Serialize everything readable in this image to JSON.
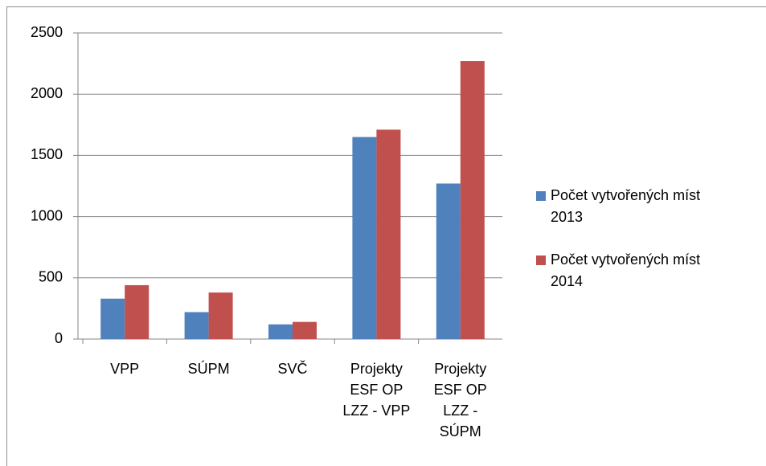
{
  "chart_data": {
    "type": "bar",
    "categories": [
      "VPP",
      "SÚPM",
      "SVČ",
      "Projekty ESF OP LZZ - VPP",
      "Projekty ESF OP LZZ - SÚPM"
    ],
    "series": [
      {
        "name": "Počet vytvořených míst 2013",
        "color": "#4f81bd",
        "values": [
          330,
          220,
          120,
          1650,
          1270
        ]
      },
      {
        "name": "Počet vytvořených míst 2014",
        "color": "#c0504d",
        "values": [
          440,
          380,
          140,
          1710,
          2270
        ]
      }
    ],
    "ylim": [
      0,
      2500
    ],
    "yticks": [
      0,
      500,
      1000,
      1500,
      2000,
      2500
    ],
    "grid": true,
    "legend": "right"
  }
}
